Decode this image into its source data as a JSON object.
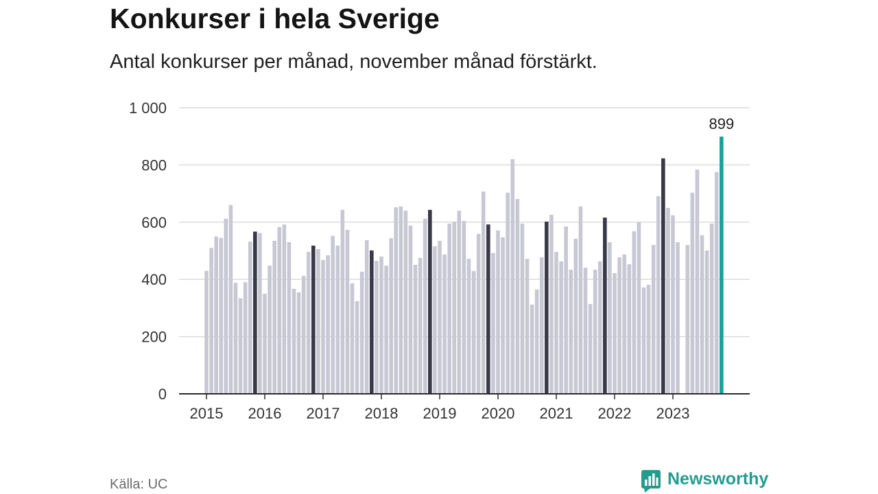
{
  "chart_data": {
    "type": "bar",
    "title": "Konkurser i hela Sverige",
    "subtitle": "Antal konkurser per månad, november månad förstärkt.",
    "ylim": [
      0,
      1000
    ],
    "yticks": [
      0,
      200,
      400,
      600,
      800,
      1000
    ],
    "ytick_labels": [
      "0",
      "200",
      "400",
      "600",
      "800",
      "1 000"
    ],
    "grid": true,
    "colors": {
      "bar": "#c8c8d4",
      "november": "#3a3949",
      "latest": "#16a29a"
    },
    "periods": [
      {
        "year": "2015",
        "values": [
          430,
          510,
          550,
          545,
          612,
          660,
          388,
          334,
          390,
          532,
          567,
          562
        ]
      },
      {
        "year": "2016",
        "values": [
          350,
          448,
          535,
          583,
          592,
          530,
          367,
          355,
          412,
          496,
          518,
          506
        ]
      },
      {
        "year": "2017",
        "values": [
          468,
          484,
          552,
          518,
          643,
          573,
          386,
          324,
          427,
          537,
          501,
          465
        ]
      },
      {
        "year": "2018",
        "values": [
          480,
          448,
          544,
          652,
          655,
          640,
          588,
          451,
          475,
          612,
          643,
          516
        ]
      },
      {
        "year": "2019",
        "values": [
          535,
          487,
          595,
          602,
          640,
          604,
          472,
          429,
          559,
          707,
          592,
          492
        ]
      },
      {
        "year": "2020",
        "values": [
          571,
          547,
          703,
          820,
          681,
          595,
          472,
          312,
          365,
          477,
          602,
          626
        ]
      },
      {
        "year": "2021",
        "values": [
          496,
          463,
          585,
          434,
          542,
          655,
          441,
          314,
          434,
          463,
          616,
          530
        ]
      },
      {
        "year": "2022",
        "values": [
          422,
          477,
          487,
          453,
          568,
          600,
          372,
          381,
          520,
          691,
          823,
          650
        ]
      },
      {
        "year": "2023",
        "values": [
          624,
          530,
          null,
          520,
          703,
          784,
          554,
          501,
          595,
          775,
          899
        ]
      }
    ]
  },
  "footer": {
    "source": "Källa: UC",
    "brand": "Newsworthy",
    "brand_icon": "chart-bubble-icon",
    "brand_color": "#239c8f"
  }
}
